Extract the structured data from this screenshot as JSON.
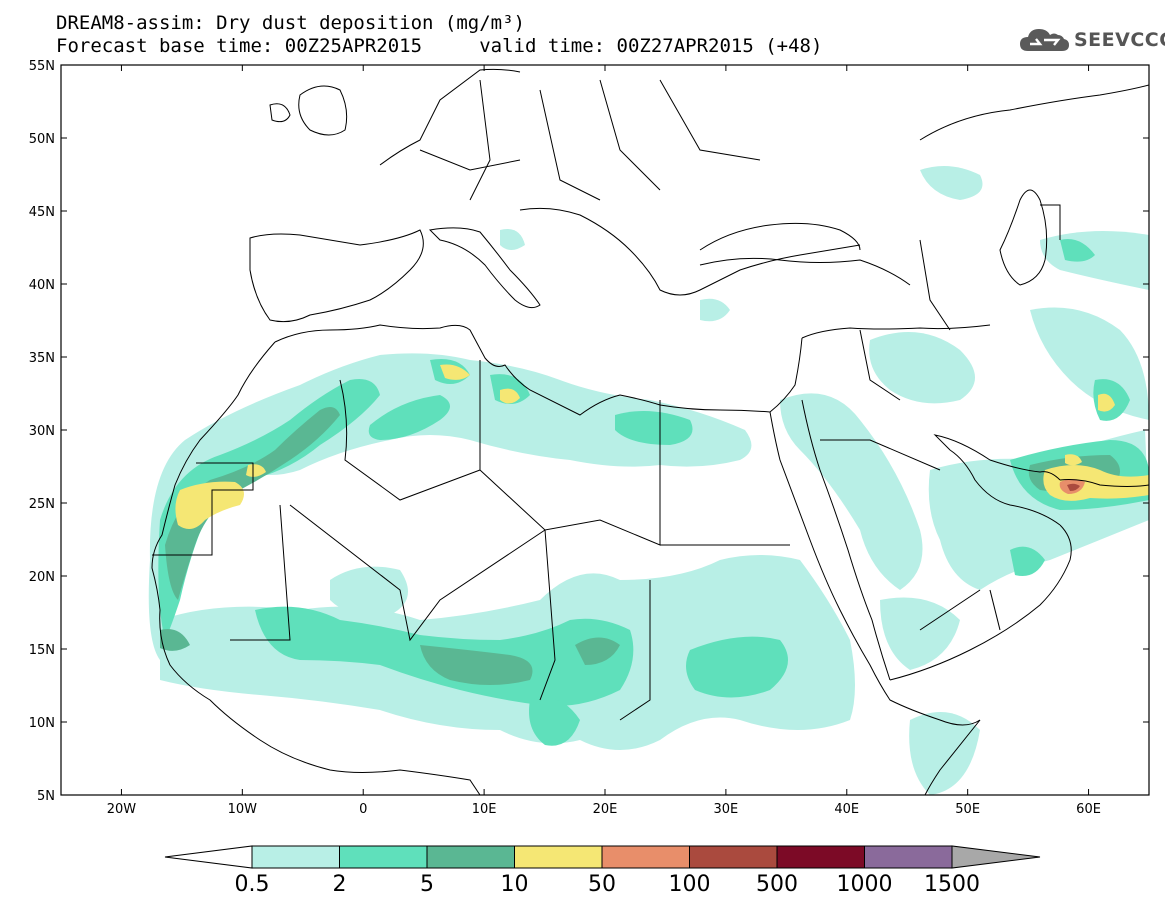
{
  "header": {
    "title_line1": "DREAM8-assim: Dry dust deposition (mg/m³)",
    "title_line2": "Forecast base time: 00Z25APR2015     valid time: 00Z27APR2015 (+48)",
    "logo_text": "SEEVCCC"
  },
  "map": {
    "lon_range": [
      -25,
      65
    ],
    "lat_range": [
      5,
      55
    ],
    "lat_ticks": [
      {
        "value": 55,
        "label": "55N"
      },
      {
        "value": 50,
        "label": "50N"
      },
      {
        "value": 45,
        "label": "45N"
      },
      {
        "value": 40,
        "label": "40N"
      },
      {
        "value": 35,
        "label": "35N"
      },
      {
        "value": 30,
        "label": "30N"
      },
      {
        "value": 25,
        "label": "25N"
      },
      {
        "value": 20,
        "label": "20N"
      },
      {
        "value": 15,
        "label": "15N"
      },
      {
        "value": 10,
        "label": "10N"
      },
      {
        "value": 5,
        "label": "5N"
      }
    ],
    "lon_ticks": [
      {
        "value": -20,
        "label": "20W"
      },
      {
        "value": -10,
        "label": "10W"
      },
      {
        "value": 0,
        "label": "0"
      },
      {
        "value": 10,
        "label": "10E"
      },
      {
        "value": 20,
        "label": "20E"
      },
      {
        "value": 30,
        "label": "30E"
      },
      {
        "value": 40,
        "label": "40E"
      },
      {
        "value": 50,
        "label": "50E"
      },
      {
        "value": 60,
        "label": "60E"
      }
    ]
  },
  "colorbar": {
    "colors": [
      "#ffffff",
      "#b8efe6",
      "#5fe0bb",
      "#5ab793",
      "#f5e774",
      "#e88e6a",
      "#aa4a3e",
      "#7c0a26",
      "#8a6a9b",
      "#a8a8a8"
    ],
    "labels": [
      "0.5",
      "2",
      "5",
      "10",
      "50",
      "100",
      "500",
      "1000",
      "1500"
    ]
  }
}
